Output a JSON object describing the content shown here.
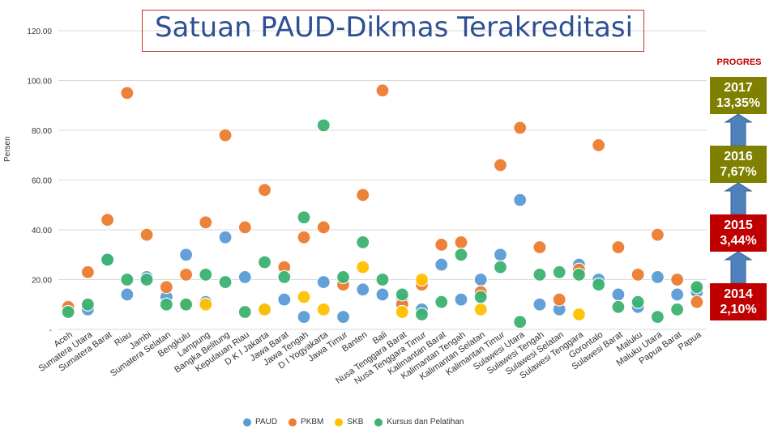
{
  "title": "Satuan PAUD-Dikmas Terakreditasi",
  "progres_label": "PROGRES",
  "ylabel": "Persen",
  "progress_boxes": [
    {
      "year": "2017",
      "value": "13,35%",
      "color": "#7f7f00"
    },
    {
      "year": "2016",
      "value": "7,67%",
      "color": "#7f7f00"
    },
    {
      "year": "2015",
      "value": "3,44%",
      "color": "#c00000"
    },
    {
      "year": "2014",
      "value": "2,10%",
      "color": "#c00000"
    }
  ],
  "arrow_color": "#4f81bd",
  "chart_data": {
    "type": "scatter",
    "ylim": [
      0,
      120
    ],
    "yticks": [
      "-",
      "20.00",
      "40.00",
      "60.00",
      "80.00",
      "100.00",
      "120.00"
    ],
    "grid": true,
    "legend": "bottom",
    "categories": [
      "Aceh",
      "Sumatera Utara",
      "Sumatera Barat",
      "Riau",
      "Jambi",
      "Sumatera Selatan",
      "Bengkulu",
      "Lampung",
      "Bangka Belitung",
      "Kepulauan Riau",
      "D K I Jakarta",
      "Jawa Barat",
      "Jawa Tengah",
      "D I Yogyakarta",
      "Jawa Timur",
      "Banten",
      "Bali",
      "Nusa Tenggara Barat",
      "Nusa Tenggara Timur",
      "Kalimantan Barat",
      "Kalimantan Tengah",
      "Kalimantan Selatan",
      "Kalimantan Timur",
      "Sulawesi Utara",
      "Sulawesi Tengah",
      "Sulawesi Selatan",
      "Sulawesi Tenggara",
      "Gorontalo",
      "Sulawesi Barat",
      "Maluku",
      "Maluku Utara",
      "Papua Barat",
      "Papua"
    ],
    "series": [
      {
        "name": "PAUD",
        "color": "#5b9bd5",
        "values": [
          8,
          8,
          28,
          14,
          21,
          13,
          30,
          11,
          37,
          21,
          8,
          12,
          5,
          19,
          5,
          16,
          14,
          12,
          8,
          26,
          12,
          20,
          30,
          52,
          10,
          8,
          26,
          20,
          14,
          9,
          21,
          14,
          15
        ]
      },
      {
        "name": "PKBM",
        "color": "#ed7d31",
        "values": [
          9,
          23,
          44,
          95,
          38,
          17,
          22,
          43,
          78,
          41,
          56,
          25,
          37,
          41,
          18,
          54,
          96,
          10,
          18,
          34,
          35,
          15,
          66,
          81,
          33,
          12,
          24,
          74,
          33,
          22,
          38,
          20,
          11
        ]
      },
      {
        "name": "SKB",
        "color": "#ffc000",
        "values": [
          null,
          null,
          null,
          null,
          null,
          null,
          10,
          10,
          null,
          null,
          8,
          null,
          13,
          8,
          null,
          25,
          null,
          7,
          20,
          null,
          null,
          8,
          null,
          null,
          null,
          null,
          6,
          null,
          null,
          null,
          null,
          null,
          null
        ]
      },
      {
        "name": "Kursus dan Pelatihan",
        "color": "#3cb371",
        "values": [
          7,
          10,
          28,
          20,
          20,
          10,
          10,
          22,
          19,
          7,
          27,
          21,
          45,
          82,
          21,
          35,
          20,
          14,
          6,
          11,
          30,
          13,
          25,
          3,
          22,
          23,
          22,
          18,
          9,
          11,
          5,
          8,
          17
        ]
      }
    ]
  }
}
